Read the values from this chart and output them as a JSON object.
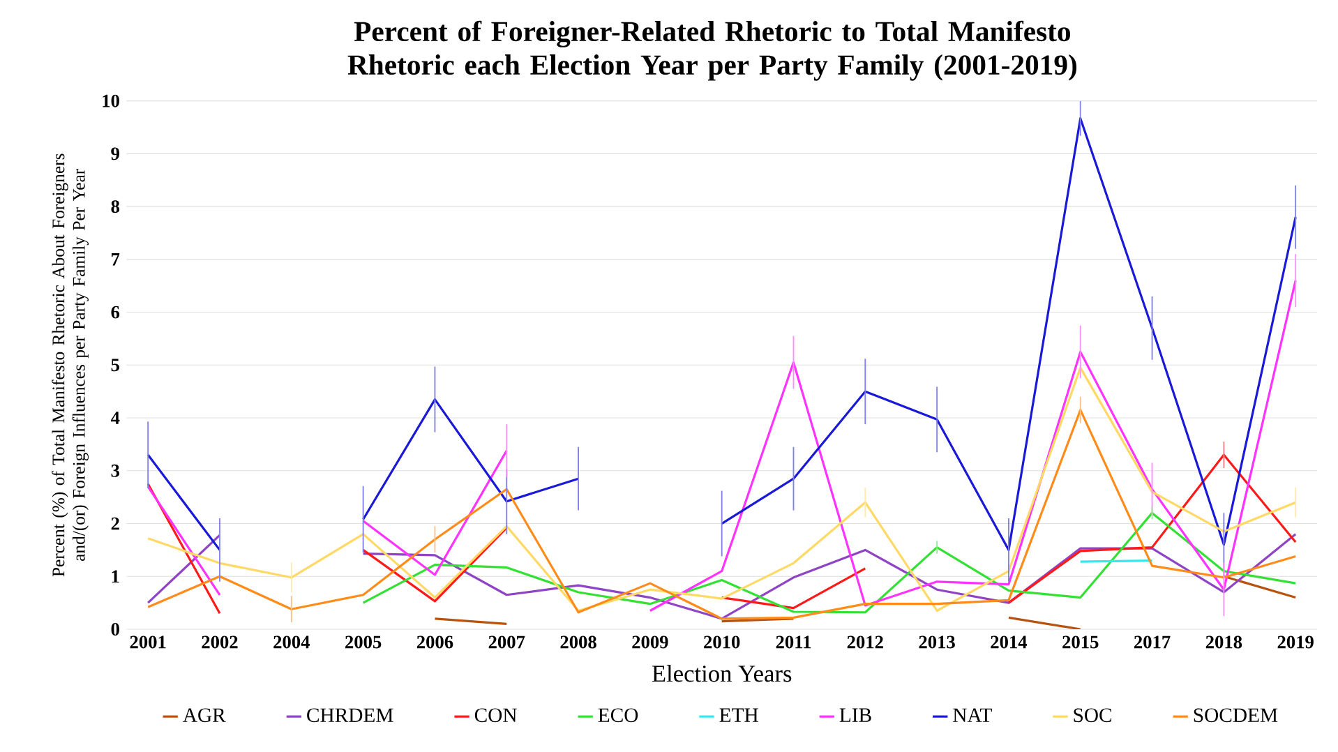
{
  "chart_data": {
    "type": "line",
    "title": "Percent of Foreigner-Related Rhetoric to Total Manifesto Rhetoric each Election Year per Party Family (2001-2019)",
    "xlabel": "Election Years",
    "ylabel": "Percent (%) of Total Manifesto Rhetoric About Foreigners and/(or) Foreign Influences per Party Family Per Year",
    "categories": [
      "2001",
      "2002",
      "2004",
      "2005",
      "2006",
      "2007",
      "2008",
      "2009",
      "2010",
      "2011",
      "2012",
      "2013",
      "2014",
      "2015",
      "2017",
      "2018",
      "2019"
    ],
    "ylim": [
      0,
      10
    ],
    "yticks": [
      0,
      1,
      2,
      3,
      4,
      5,
      6,
      7,
      8,
      9,
      10
    ],
    "grid": "y",
    "legend": "bottom",
    "marker": "none",
    "line_style": "solid",
    "series": [
      {
        "name": "AGR",
        "color": "#b8530f",
        "values": [
          null,
          null,
          null,
          null,
          0.2,
          0.1,
          null,
          null,
          0.15,
          0.2,
          null,
          null,
          0.22,
          0.0,
          null,
          1.0,
          0.6
        ]
      },
      {
        "name": "CHRDEM",
        "color": "#8e44c4",
        "values": [
          0.5,
          1.78,
          null,
          1.43,
          1.4,
          0.65,
          0.83,
          0.6,
          0.2,
          0.98,
          1.5,
          0.75,
          0.5,
          1.53,
          1.53,
          0.7,
          1.8
        ]
      },
      {
        "name": "CON",
        "color": "#ff1a1a",
        "values": [
          2.75,
          0.3,
          null,
          1.5,
          0.53,
          1.92,
          null,
          null,
          0.6,
          0.4,
          1.15,
          null,
          0.5,
          1.48,
          1.55,
          3.3,
          1.65
        ],
        "errors": [
          null,
          null,
          null,
          null,
          null,
          null,
          null,
          null,
          null,
          null,
          null,
          null,
          null,
          null,
          null,
          0.25,
          null
        ]
      },
      {
        "name": "ECO",
        "color": "#33e033",
        "values": [
          null,
          null,
          null,
          0.5,
          1.22,
          1.17,
          0.7,
          0.48,
          0.93,
          0.33,
          0.32,
          1.55,
          0.73,
          0.6,
          2.2,
          1.1,
          0.87
        ],
        "errors": [
          null,
          null,
          null,
          null,
          null,
          null,
          null,
          null,
          null,
          null,
          null,
          0.12,
          null,
          null,
          0.12,
          null,
          null
        ]
      },
      {
        "name": "ETH",
        "color": "#33e8f0",
        "values": [
          null,
          null,
          null,
          null,
          null,
          null,
          null,
          null,
          null,
          null,
          null,
          null,
          null,
          1.28,
          1.3,
          null,
          null
        ]
      },
      {
        "name": "LIB",
        "color": "#ff33ff",
        "values": [
          2.7,
          0.65,
          null,
          2.05,
          1.03,
          3.38,
          null,
          0.35,
          1.1,
          5.05,
          0.45,
          0.9,
          0.85,
          5.25,
          2.65,
          0.75,
          6.6
        ],
        "errors": [
          null,
          null,
          null,
          null,
          null,
          0.5,
          null,
          null,
          null,
          0.5,
          null,
          null,
          null,
          0.5,
          0.5,
          0.5,
          0.5
        ]
      },
      {
        "name": "NAT",
        "color": "#1a1ad6",
        "values": [
          3.3,
          1.5,
          null,
          2.08,
          4.35,
          2.42,
          2.85,
          null,
          2.0,
          2.85,
          4.5,
          3.97,
          1.5,
          9.67,
          5.7,
          1.6,
          7.8
        ],
        "errors": [
          0.63,
          0.6,
          null,
          0.63,
          0.62,
          0.62,
          0.6,
          null,
          0.62,
          0.6,
          0.62,
          0.62,
          0.6,
          0.33,
          0.6,
          0.6,
          0.6
        ]
      },
      {
        "name": "SOC",
        "color": "#ffd966",
        "values": [
          1.72,
          1.25,
          0.98,
          1.8,
          0.6,
          1.95,
          0.35,
          0.75,
          0.58,
          1.25,
          2.4,
          0.35,
          1.1,
          4.95,
          2.6,
          1.85,
          2.4
        ],
        "errors": [
          null,
          null,
          0.28,
          null,
          null,
          null,
          null,
          null,
          null,
          null,
          0.28,
          null,
          null,
          null,
          null,
          null,
          0.28
        ]
      },
      {
        "name": "SOCDEM",
        "color": "#ff8c1a",
        "values": [
          0.42,
          1.0,
          0.38,
          0.65,
          1.7,
          2.65,
          0.32,
          0.87,
          0.2,
          0.22,
          0.48,
          0.48,
          0.55,
          4.15,
          1.2,
          0.98,
          1.38
        ],
        "errors": [
          null,
          null,
          0.25,
          null,
          0.25,
          null,
          null,
          null,
          null,
          null,
          null,
          null,
          null,
          0.25,
          null,
          null,
          null
        ]
      }
    ]
  }
}
